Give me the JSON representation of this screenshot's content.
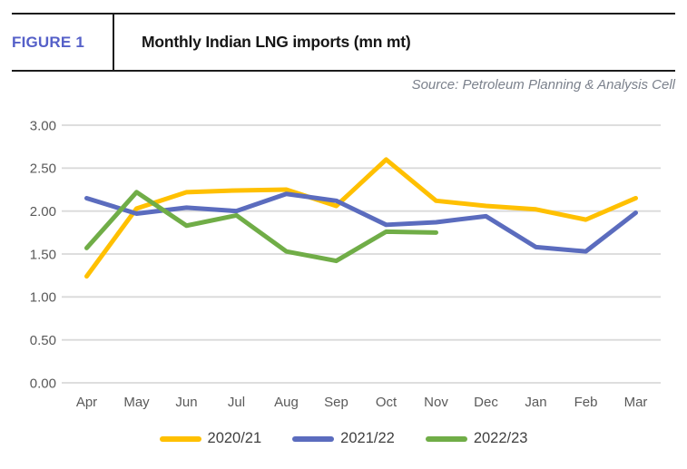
{
  "header": {
    "figure_label": "FIGURE 1",
    "title": "Monthly Indian LNG imports (mn mt)"
  },
  "source": "Source: Petroleum Planning & Analysis Cell",
  "chart_data": {
    "type": "line",
    "title": "Monthly Indian LNG imports (mn mt)",
    "xlabel": "",
    "ylabel": "",
    "categories": [
      "Apr",
      "May",
      "Jun",
      "Jul",
      "Aug",
      "Sep",
      "Oct",
      "Nov",
      "Dec",
      "Jan",
      "Feb",
      "Mar"
    ],
    "series": [
      {
        "name": "2020/21",
        "color": "#FFC000",
        "values": [
          1.24,
          2.03,
          2.22,
          2.24,
          2.25,
          2.06,
          2.6,
          2.12,
          2.06,
          2.02,
          1.9,
          2.15
        ]
      },
      {
        "name": "2021/22",
        "color": "#5B6CBE",
        "values": [
          2.15,
          1.97,
          2.04,
          2.0,
          2.2,
          2.12,
          1.84,
          1.87,
          1.94,
          1.58,
          1.53,
          1.98
        ]
      },
      {
        "name": "2022/23",
        "color": "#70AD47",
        "values": [
          1.57,
          2.22,
          1.83,
          1.95,
          1.53,
          1.42,
          1.76,
          1.75,
          null,
          null,
          null,
          null
        ]
      }
    ],
    "ylim": [
      0,
      3
    ],
    "ytick_step": 0.5,
    "ytick_labels": [
      "3.00",
      "2.50",
      "2.00",
      "1.50",
      "1.00",
      "0.50",
      "0.00"
    ],
    "grid": true,
    "grid_color": "#D9D9D9",
    "axis_text_color": "#595959",
    "legend_position": "bottom"
  }
}
